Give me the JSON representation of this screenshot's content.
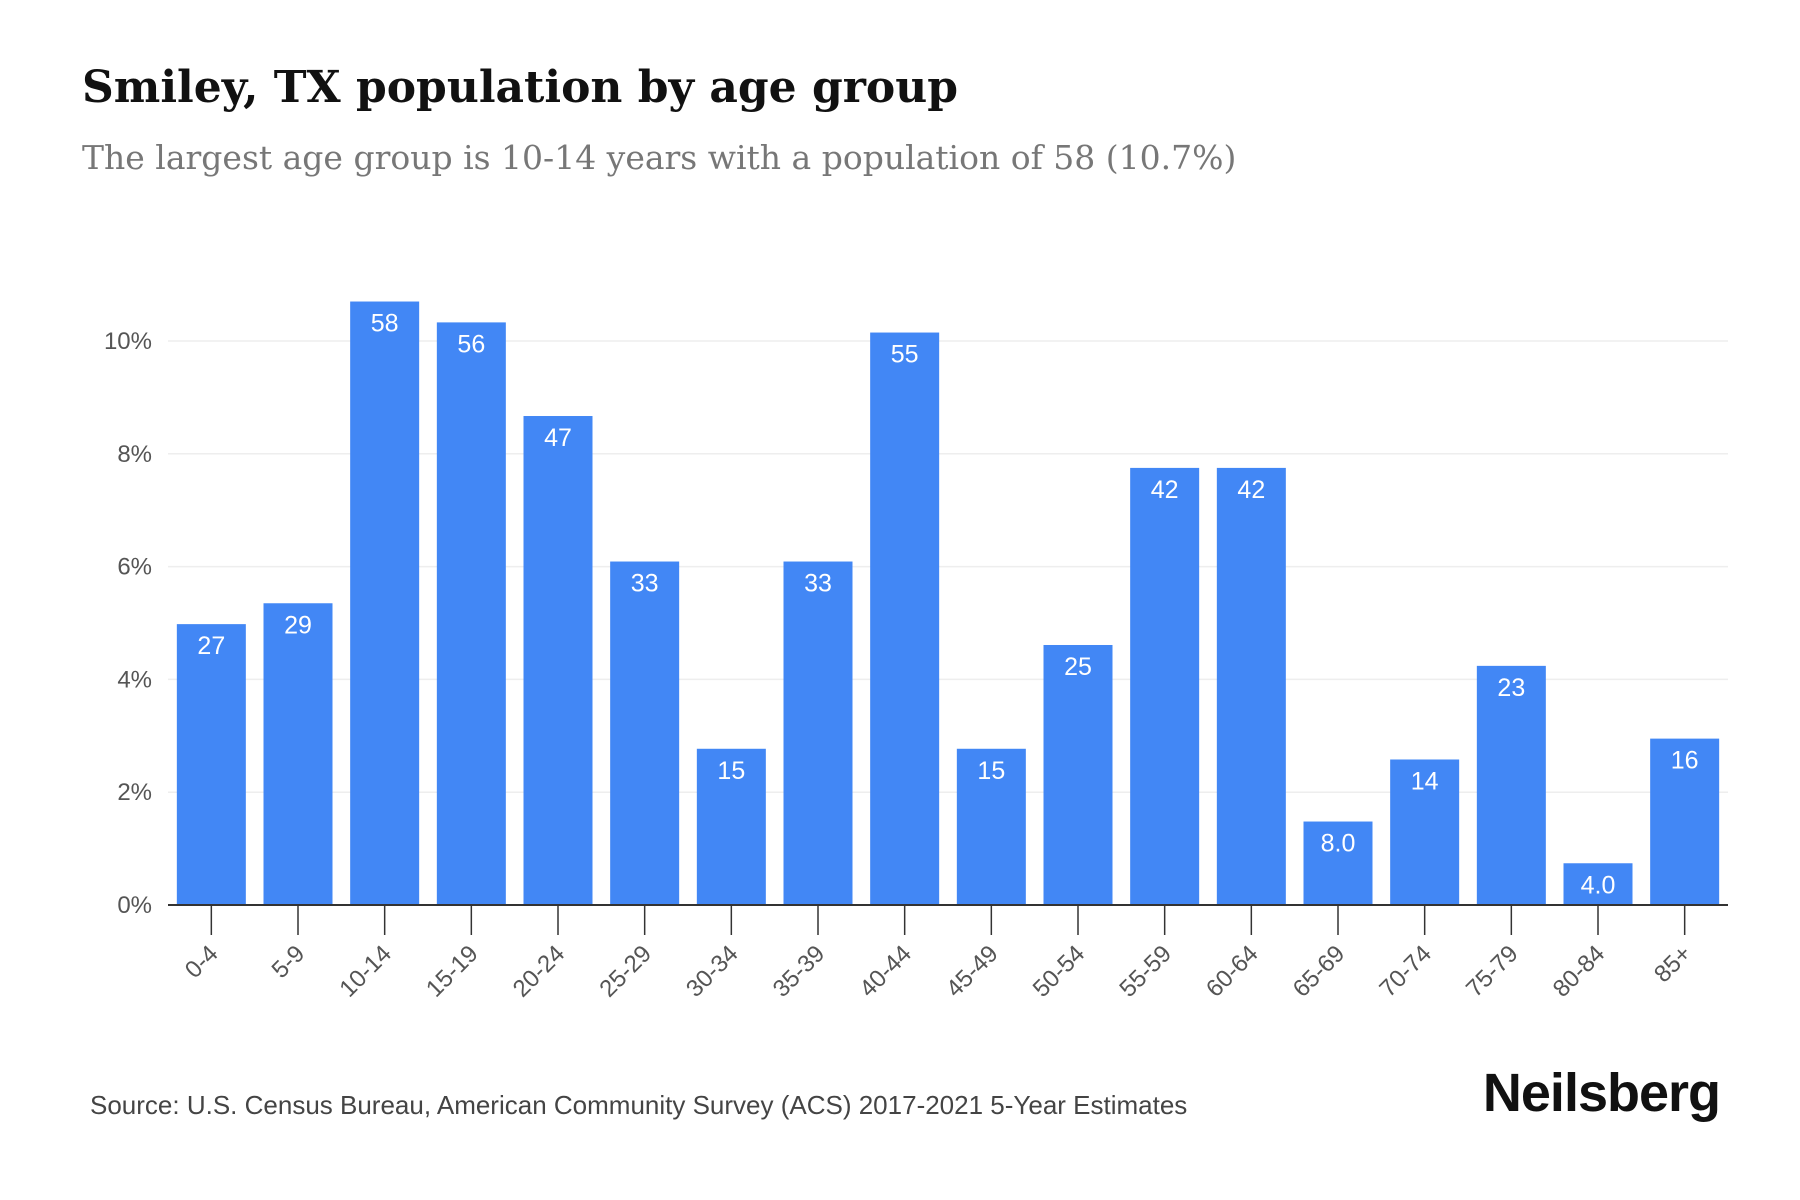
{
  "title": "Smiley, TX population by age group",
  "subtitle": "The largest age group is 10-14 years with a population of 58 (10.7%)",
  "source": "Source: U.S. Census Bureau, American Community Survey (ACS) 2017-2021 5-Year Estimates",
  "brand": "Neilsberg",
  "colors": {
    "bar": "#4287f5",
    "label_inside": "#ffffff",
    "axis_text": "#555555",
    "grid": "#eeeeee",
    "axis_line": "#333333"
  },
  "chart_data": {
    "type": "bar",
    "categories": [
      "0-4",
      "5-9",
      "10-14",
      "15-19",
      "20-24",
      "25-29",
      "30-34",
      "35-39",
      "40-44",
      "45-49",
      "50-54",
      "55-59",
      "60-64",
      "65-69",
      "70-74",
      "75-79",
      "80-84",
      "85+"
    ],
    "values": [
      4.98,
      5.35,
      10.7,
      10.33,
      8.67,
      6.09,
      2.77,
      6.09,
      10.15,
      2.77,
      4.61,
      7.75,
      7.75,
      1.48,
      2.58,
      4.24,
      0.74,
      2.95
    ],
    "data_labels": [
      "27",
      "29",
      "58",
      "56",
      "47",
      "33",
      "15",
      "33",
      "55",
      "15",
      "25",
      "42",
      "42",
      "8.0",
      "14",
      "23",
      "4.0",
      "16"
    ],
    "y_ticks": [
      0,
      2,
      4,
      6,
      8,
      10
    ],
    "y_tick_labels": [
      "0%",
      "2%",
      "4%",
      "6%",
      "8%",
      "10%"
    ],
    "ylim": [
      0,
      10.7
    ],
    "xlabel": "",
    "ylabel": "",
    "grid": true,
    "legend": "none"
  }
}
